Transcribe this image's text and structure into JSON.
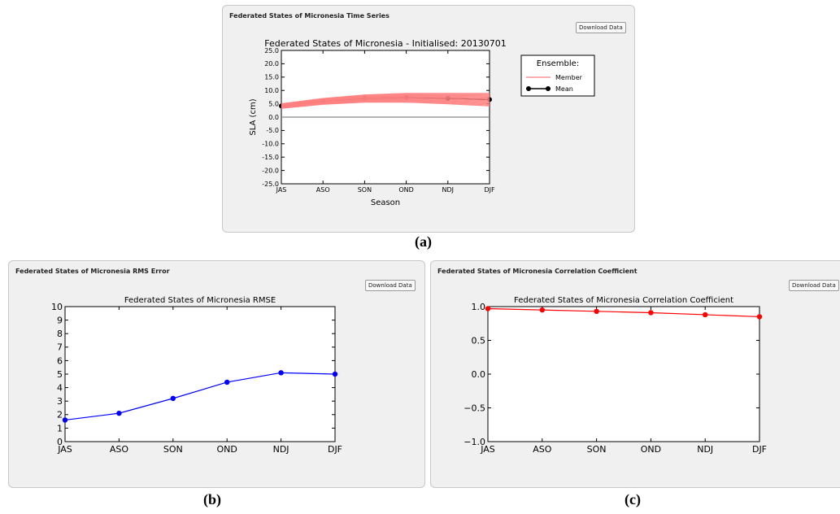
{
  "panels": [
    {
      "title": "Federated States of Micronesia Time Series",
      "download_label": "Download Data",
      "caption": "(a)"
    },
    {
      "title": "Federated States of Micronesia RMS Error",
      "download_label": "Download Data",
      "caption": "(b)"
    },
    {
      "title": "Federated States of Micronesia Correlation Coefficient",
      "download_label": "Download Data",
      "caption": "(c)"
    }
  ],
  "chart_data": [
    {
      "type": "line",
      "title": "Federated States of Micronesia - Initialised: 20130701",
      "xlabel": "Season",
      "ylabel": "SLA (cm)",
      "categories": [
        "JAS",
        "ASO",
        "SON",
        "OND",
        "NDJ",
        "DJF"
      ],
      "ylim": [
        -25,
        25
      ],
      "yticks": [
        "25.0",
        "20.0",
        "15.0",
        "10.0",
        "5.0",
        "0.0",
        "-5.0",
        "-10.0",
        "-15.0",
        "-20.0",
        "-25.0"
      ],
      "series": [
        {
          "name": "Mean",
          "color": "#000000",
          "values": [
            4.2,
            6.0,
            7.0,
            7.3,
            7.0,
            6.6
          ]
        },
        {
          "name": "Member",
          "color": "#ff8080",
          "min": [
            3.3,
            4.8,
            5.6,
            5.6,
            5.0,
            4.2
          ],
          "max": [
            5.0,
            7.0,
            8.3,
            8.9,
            8.9,
            8.9
          ]
        }
      ],
      "reference_line": 0,
      "legend": {
        "title": "Ensemble:",
        "entries": [
          "Member",
          "Mean"
        ],
        "placement": "outside-right"
      }
    },
    {
      "type": "line",
      "title": "Federated States of Micronesia RMSE",
      "categories": [
        "JAS",
        "ASO",
        "SON",
        "OND",
        "NDJ",
        "DJF"
      ],
      "ylim": [
        0,
        10
      ],
      "yticks": [
        "10",
        "9",
        "8",
        "7",
        "6",
        "5",
        "4",
        "3",
        "2",
        "1",
        "0"
      ],
      "series": [
        {
          "color": "#0000ff",
          "values": [
            1.6,
            2.1,
            3.2,
            4.4,
            5.1,
            5.0
          ]
        }
      ]
    },
    {
      "type": "line",
      "title": "Federated States of Micronesia Correlation Coefficient",
      "categories": [
        "JAS",
        "ASO",
        "SON",
        "OND",
        "NDJ",
        "DJF"
      ],
      "ylim": [
        -1.0,
        1.0
      ],
      "yticks": [
        "1.0",
        "0.5",
        "0.0",
        "−0.5",
        "−1.0"
      ],
      "series": [
        {
          "color": "#ff0000",
          "values": [
            0.97,
            0.95,
            0.93,
            0.91,
            0.88,
            0.85
          ]
        }
      ]
    }
  ]
}
